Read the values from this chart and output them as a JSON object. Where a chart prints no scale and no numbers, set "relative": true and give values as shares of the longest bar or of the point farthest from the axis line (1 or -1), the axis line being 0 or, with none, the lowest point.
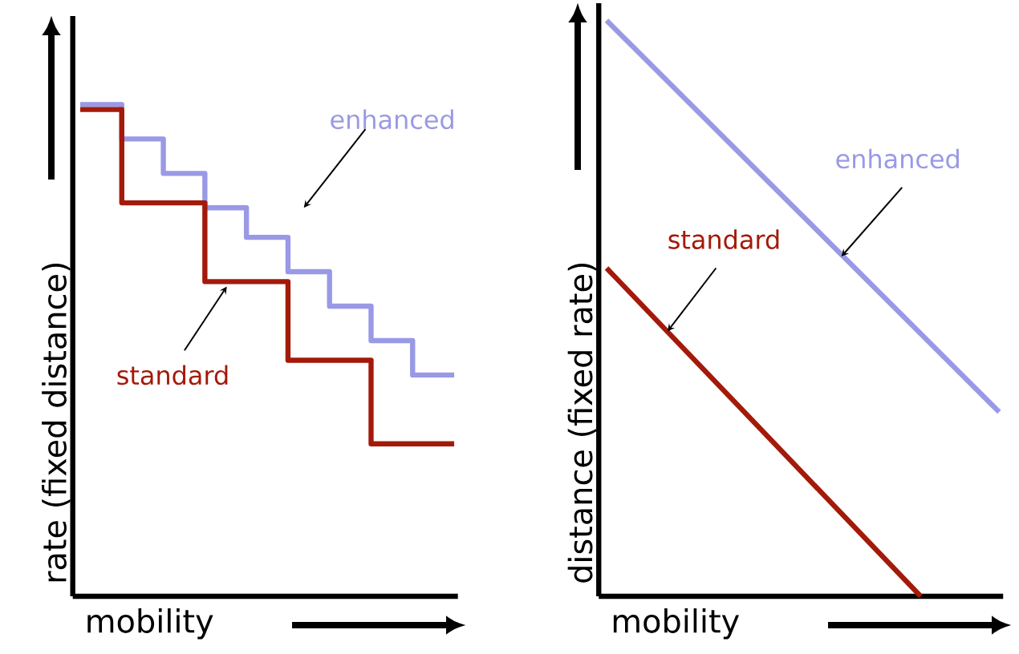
{
  "chart_data": [
    {
      "type": "step",
      "xlabel": "mobility",
      "ylabel": "rate (fixed distance)",
      "relative": true,
      "categories": [
        null,
        null,
        null,
        null,
        null,
        null,
        null,
        null,
        null,
        null
      ],
      "series": [
        {
          "name": "enhanced",
          "color": "#9999e6",
          "values": [
            1.0,
            0.93,
            0.86,
            0.79,
            0.73,
            0.66,
            0.59,
            0.52,
            0.45,
            0.45
          ]
        },
        {
          "name": "standard",
          "color": "#a31a0a",
          "values": [
            0.99,
            0.8,
            0.8,
            0.64,
            0.64,
            0.48,
            0.48,
            0.31,
            0.31,
            0.31
          ]
        }
      ]
    },
    {
      "type": "line",
      "xlabel": "mobility",
      "ylabel": "distance (fixed rate)",
      "relative": true,
      "categories": [
        null,
        null,
        null,
        null,
        null,
        null
      ],
      "series": [
        {
          "name": "enhanced",
          "color": "#9999e6",
          "values": [
            1.0,
            null,
            null,
            null,
            null,
            0.32
          ]
        },
        {
          "name": "standard",
          "color": "#a31a0a",
          "values": [
            0.57,
            null,
            null,
            null,
            0.0,
            null
          ]
        }
      ]
    }
  ]
}
